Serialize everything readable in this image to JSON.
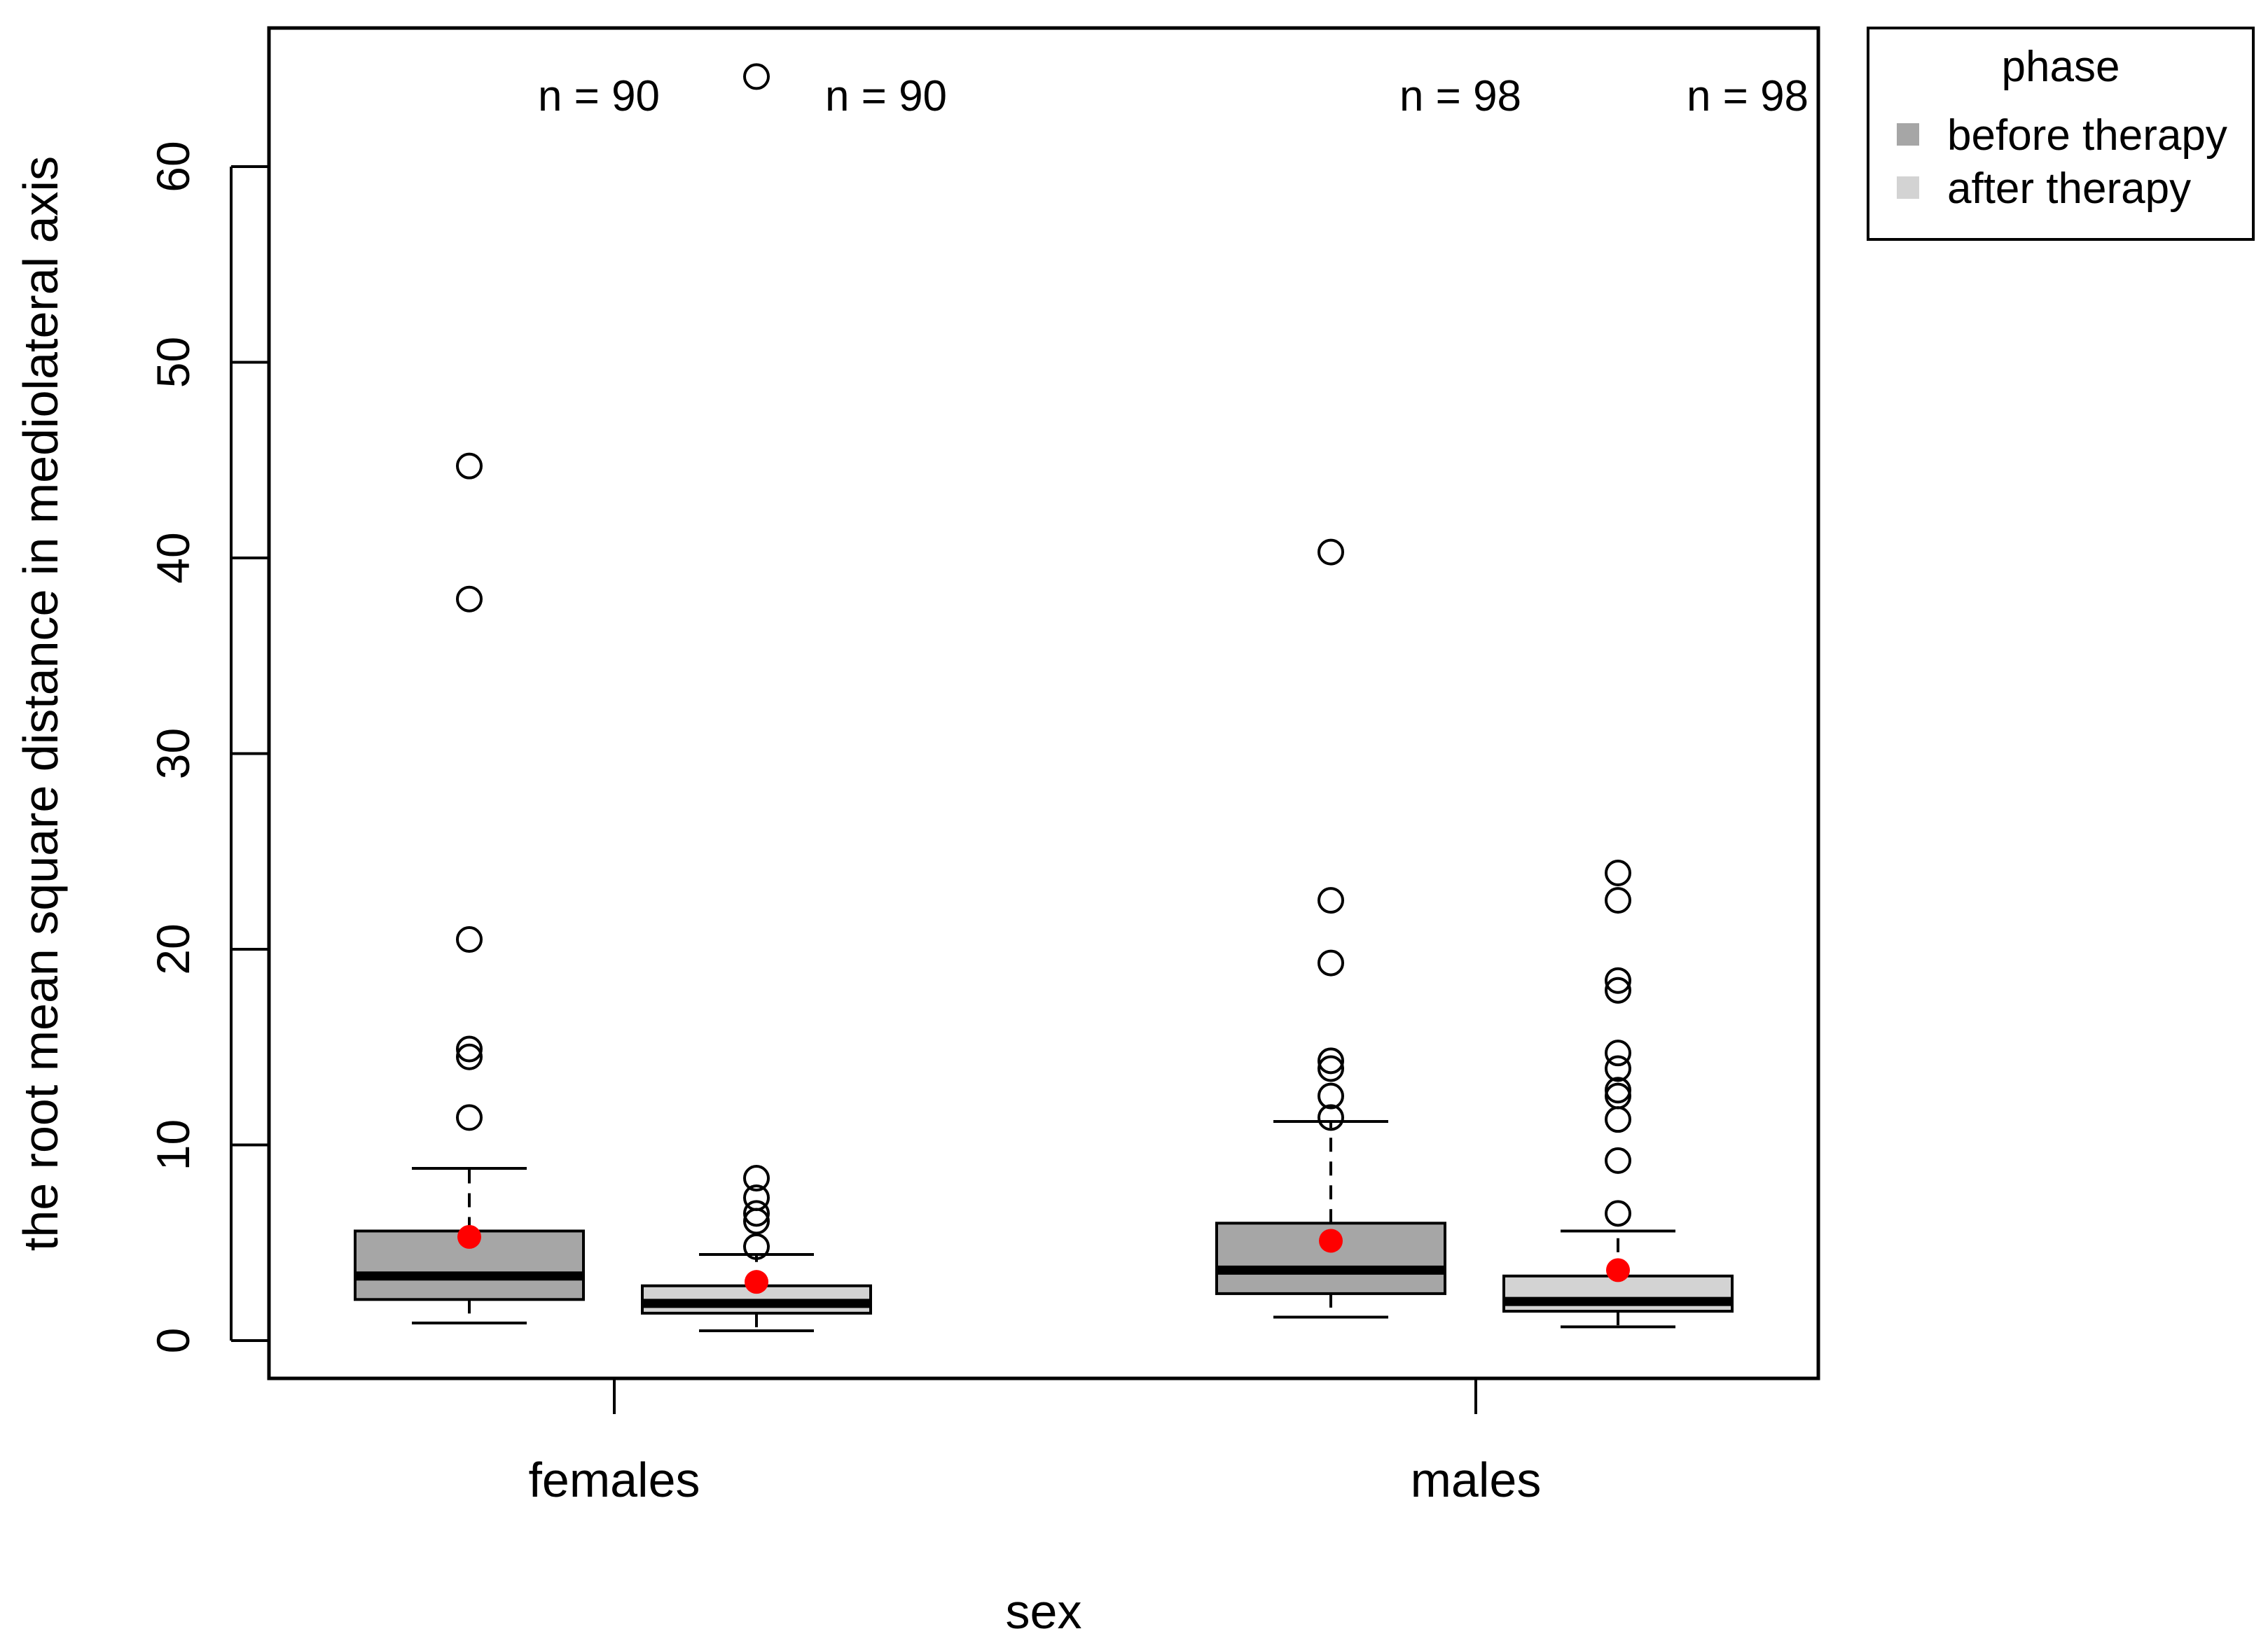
{
  "chart_data": {
    "type": "boxplot",
    "xlabel": "sex",
    "ylabel": "the root mean square distance in mediolateral axis",
    "ylim": [
      -2,
      67
    ],
    "yticks": [
      0,
      10,
      20,
      30,
      40,
      50,
      60
    ],
    "ytick_labels": [
      "0",
      "10",
      "20",
      "30",
      "40",
      "50",
      "60"
    ],
    "categories": [
      "females",
      "males"
    ],
    "legend": {
      "title": "phase",
      "position": "top-right outside",
      "entries": [
        {
          "label": "before therapy",
          "color": "#a6a6a6"
        },
        {
          "label": "after therapy",
          "color": "#d3d3d3"
        }
      ]
    },
    "mean_color": "#ff0000",
    "boxes": [
      {
        "category": "females",
        "phase": "before therapy",
        "n_label": "n = 90",
        "whisker_low": 0.9,
        "q1": 2.1,
        "median": 3.3,
        "q3": 5.6,
        "whisker_high": 8.8,
        "mean": 5.3,
        "outliers": [
          11.4,
          14.5,
          14.9,
          20.5,
          37.9,
          44.7
        ]
      },
      {
        "category": "females",
        "phase": "after therapy",
        "n_label": "n = 90",
        "whisker_low": 0.5,
        "q1": 1.4,
        "median": 1.9,
        "q3": 2.8,
        "whisker_high": 4.4,
        "mean": 3.0,
        "outliers": [
          4.8,
          6.1,
          6.5,
          7.3,
          8.3,
          64.6
        ]
      },
      {
        "category": "males",
        "phase": "before therapy",
        "n_label": "n = 98",
        "whisker_low": 1.2,
        "q1": 2.4,
        "median": 3.6,
        "q3": 6.0,
        "whisker_high": 11.2,
        "mean": 5.1,
        "outliers": [
          11.4,
          12.5,
          13.9,
          14.3,
          19.3,
          22.5,
          40.3
        ]
      },
      {
        "category": "males",
        "phase": "after therapy",
        "n_label": "n = 98",
        "whisker_low": 0.7,
        "q1": 1.5,
        "median": 2.0,
        "q3": 3.3,
        "whisker_high": 5.6,
        "mean": 3.6,
        "outliers": [
          6.5,
          9.2,
          11.3,
          12.5,
          12.8,
          13.9,
          14.7,
          17.9,
          18.4,
          22.5,
          23.9
        ]
      }
    ]
  }
}
